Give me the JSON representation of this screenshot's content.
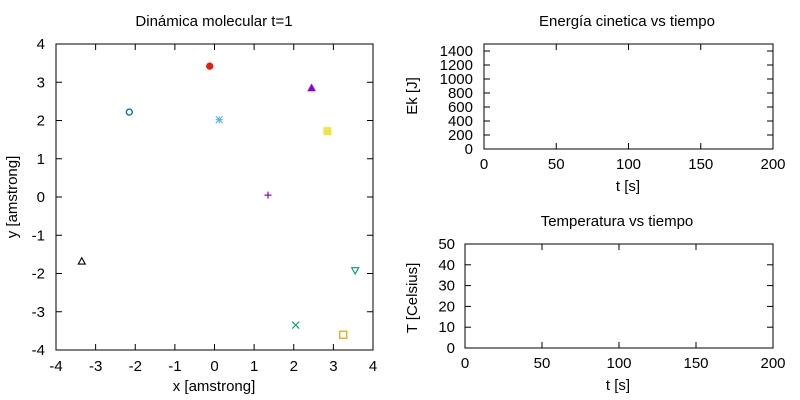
{
  "chart_data": [
    {
      "type": "scatter",
      "title": "Dinámica molecular t=1",
      "xlabel": "x [amstrong]",
      "ylabel": "y [amstrong]",
      "xlim": [
        -4,
        4
      ],
      "ylim": [
        -4,
        4
      ],
      "xticks": [
        "-4",
        "-3",
        "-2",
        "-1",
        "0",
        "1",
        "2",
        "3",
        "4"
      ],
      "yticks": [
        "-4",
        "-3",
        "-2",
        "-1",
        "0",
        "1",
        "2",
        "3",
        "4"
      ],
      "grid": false,
      "legend": false,
      "points": [
        {
          "x": 1.35,
          "y": 0.05,
          "marker": "plus",
          "color": "#9400d3"
        },
        {
          "x": 2.05,
          "y": -3.35,
          "marker": "cross",
          "color": "#009e73"
        },
        {
          "x": 0.12,
          "y": 2.02,
          "marker": "star",
          "color": "#56b4e9"
        },
        {
          "x": 3.25,
          "y": -3.6,
          "marker": "square-open",
          "color": "#e69f00"
        },
        {
          "x": 2.85,
          "y": 1.72,
          "marker": "square-filled",
          "color": "#f0e442"
        },
        {
          "x": -2.15,
          "y": 2.22,
          "marker": "circle-open",
          "color": "#0072b2"
        },
        {
          "x": -0.12,
          "y": 3.42,
          "marker": "circle-filled",
          "color": "#e51e10"
        },
        {
          "x": -3.35,
          "y": -1.68,
          "marker": "triangle-up-open",
          "color": "#000000"
        },
        {
          "x": 2.45,
          "y": 2.85,
          "marker": "triangle-up-filled",
          "color": "#9400d3"
        },
        {
          "x": 3.55,
          "y": -1.92,
          "marker": "triangle-down-open",
          "color": "#009e73"
        }
      ]
    },
    {
      "type": "line",
      "title": "Energía cinetica vs tiempo",
      "xlabel": "t [s]",
      "ylabel": "Ek [J]",
      "xlim": [
        0,
        200
      ],
      "ylim": [
        0,
        1500
      ],
      "xticks": [
        "0",
        "50",
        "100",
        "150",
        "200"
      ],
      "yticks": [
        "0",
        "200",
        "400",
        "600",
        "800",
        "1000",
        "1200",
        "1400"
      ],
      "grid": false,
      "series": []
    },
    {
      "type": "line",
      "title": "Temperatura vs tiempo",
      "xlabel": "t [s]",
      "ylabel": "T [Celsius]",
      "xlim": [
        0,
        200
      ],
      "ylim": [
        0,
        50
      ],
      "xticks": [
        "0",
        "50",
        "100",
        "150",
        "200"
      ],
      "yticks": [
        "0",
        "10",
        "20",
        "30",
        "40",
        "50"
      ],
      "grid": false,
      "series": []
    }
  ]
}
